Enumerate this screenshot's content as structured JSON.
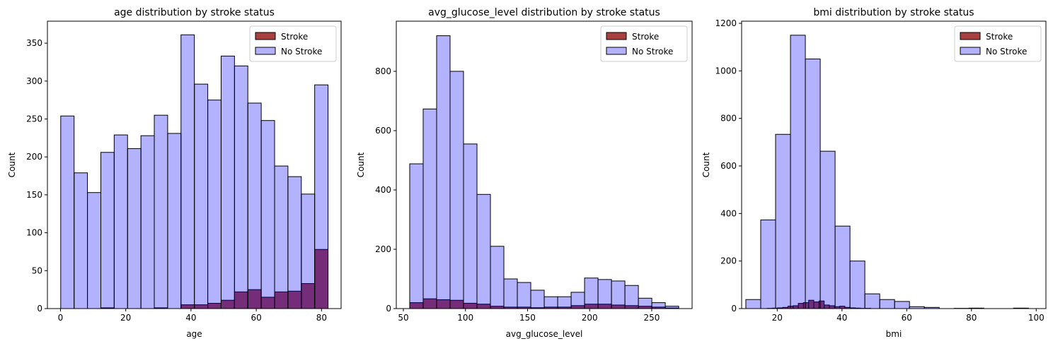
{
  "chart_data": [
    {
      "type": "histogram",
      "title": "age distribution by stroke status",
      "x_label": "age",
      "y_label": "Count",
      "xlim": [
        -4,
        86
      ],
      "xticks": [
        0,
        20,
        40,
        60,
        80
      ],
      "ylim": [
        0,
        379
      ],
      "yticks": [
        0,
        50,
        100,
        150,
        200,
        250,
        300,
        350
      ],
      "legend": "upper right",
      "series": [
        {
          "name": "Stroke",
          "color": "darkred",
          "alpha": 0.75,
          "bins": [
            0.08,
            4.18,
            8.27,
            12.37,
            16.46,
            20.56,
            24.66,
            28.75,
            32.85,
            36.94,
            41.04,
            45.14,
            49.23,
            53.33,
            57.42,
            61.52,
            65.62,
            69.71,
            73.81,
            77.9,
            82
          ],
          "values": [
            0,
            0,
            0,
            1,
            0,
            0,
            0,
            1,
            0,
            5,
            5,
            7,
            11,
            22,
            25,
            15,
            22,
            23,
            33,
            78
          ]
        },
        {
          "name": "No Stroke",
          "color": "blue",
          "alpha": 0.3,
          "bins": [
            0.08,
            4.18,
            8.27,
            12.37,
            16.46,
            20.56,
            24.66,
            28.75,
            32.85,
            36.94,
            41.04,
            45.14,
            49.23,
            53.33,
            57.42,
            61.52,
            65.62,
            69.71,
            73.81,
            77.9,
            82
          ],
          "values": [
            254,
            179,
            153,
            206,
            229,
            211,
            228,
            255,
            231,
            361,
            296,
            275,
            333,
            320,
            271,
            248,
            188,
            174,
            151,
            295
          ]
        }
      ]
    },
    {
      "type": "histogram",
      "title": "avg_glucose_level distribution by stroke status",
      "x_label": "avg_glucose_level",
      "y_label": "Count",
      "xlim": [
        44.3,
        282.5
      ],
      "xticks": [
        50,
        100,
        150,
        200,
        250
      ],
      "ylim": [
        0,
        969
      ],
      "yticks": [
        0,
        200,
        400,
        600,
        800
      ],
      "legend": "upper right",
      "series": [
        {
          "name": "Stroke",
          "color": "darkred",
          "alpha": 0.75,
          "bins": [
            55.12,
            65.95,
            76.78,
            87.61,
            98.44,
            109.27,
            120.1,
            130.93,
            141.76,
            152.59,
            163.42,
            174.25,
            185.08,
            195.91,
            206.74,
            217.57,
            228.4,
            239.23,
            250.06,
            260.89,
            271.72
          ],
          "values": [
            20,
            33,
            30,
            28,
            18,
            15,
            8,
            5,
            5,
            3,
            5,
            5,
            10,
            15,
            15,
            12,
            10,
            8,
            5,
            2
          ]
        },
        {
          "name": "No Stroke",
          "color": "blue",
          "alpha": 0.3,
          "bins": [
            55.12,
            65.95,
            76.78,
            87.61,
            98.44,
            109.27,
            120.1,
            130.93,
            141.76,
            152.59,
            163.42,
            174.25,
            185.08,
            195.91,
            206.74,
            217.57,
            228.4,
            239.23,
            250.06,
            260.89,
            271.72
          ],
          "values": [
            488,
            673,
            920,
            800,
            555,
            385,
            210,
            100,
            88,
            62,
            40,
            40,
            55,
            103,
            98,
            93,
            78,
            35,
            20,
            8
          ]
        }
      ]
    },
    {
      "type": "histogram",
      "title": "bmi distribution by stroke status",
      "x_label": "bmi",
      "y_label": "Count",
      "xlim": [
        9,
        103
      ],
      "xticks": [
        20,
        40,
        60,
        80,
        100
      ],
      "ylim": [
        0,
        1209
      ],
      "yticks": [
        0,
        200,
        400,
        600,
        800,
        1000,
        1200
      ],
      "legend": "upper right",
      "series": [
        {
          "name": "Stroke",
          "color": "darkred",
          "alpha": 0.75,
          "bins": [
            16.9,
            18.5,
            20.1,
            21.7,
            23.3,
            24.9,
            26.5,
            28.1,
            29.7,
            31.3,
            32.9,
            34.5,
            36.1,
            37.7,
            39.3,
            40.9,
            42.5,
            44.1,
            45.7,
            47.3,
            48.9
          ],
          "values": [
            1,
            2,
            3,
            5,
            10,
            12,
            22,
            25,
            35,
            28,
            32,
            15,
            12,
            8,
            10,
            5,
            3,
            2,
            1,
            1
          ]
        },
        {
          "name": "No Stroke",
          "color": "blue",
          "alpha": 0.3,
          "bins": [
            10.3,
            14.9,
            19.49,
            24.09,
            28.68,
            33.28,
            37.87,
            42.47,
            47.06,
            51.66,
            56.25,
            60.85,
            65.44,
            70.04,
            74.63,
            79.23,
            83.82,
            88.42,
            93.01,
            97.6
          ],
          "values": [
            38,
            373,
            733,
            1150,
            1050,
            662,
            347,
            200,
            62,
            38,
            30,
            8,
            5,
            0,
            1,
            2,
            0,
            0,
            2
          ]
        }
      ]
    }
  ]
}
